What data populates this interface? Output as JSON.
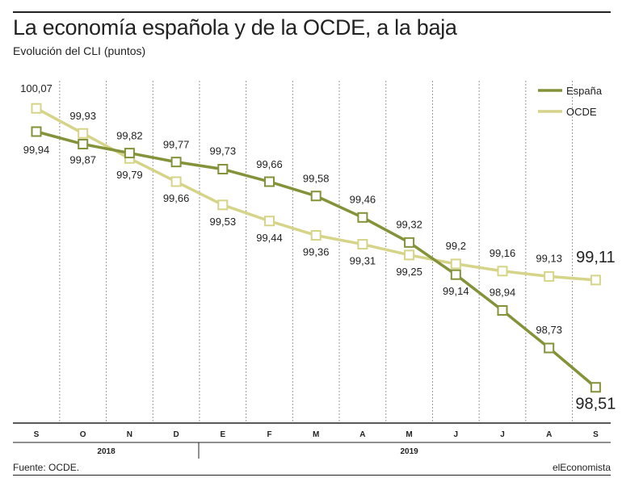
{
  "header": {
    "title": "La economía española y de la OCDE, a la baja",
    "subtitle": "Evolución del CLI (puntos)"
  },
  "footer": {
    "source": "Fuente: OCDE.",
    "brand": "elEconomista"
  },
  "colors": {
    "espana": "#84923a",
    "ocde": "#d6d488",
    "grid": "#999999",
    "text": "#222222"
  },
  "chart_data": {
    "type": "line",
    "title": "La economía española y de la OCDE, a la baja",
    "subtitle": "Evolución del CLI (puntos)",
    "categories": [
      "S",
      "O",
      "N",
      "D",
      "E",
      "F",
      "M",
      "A",
      "M",
      "J",
      "J",
      "A",
      "S"
    ],
    "year_groups": [
      {
        "label": "2018",
        "start": 0,
        "end": 3
      },
      {
        "label": "2019",
        "start": 4,
        "end": 12
      }
    ],
    "series": [
      {
        "name": "España",
        "color": "#84923a",
        "values": [
          99.94,
          99.87,
          99.82,
          99.77,
          99.73,
          99.66,
          99.58,
          99.46,
          99.32,
          99.14,
          98.94,
          98.73,
          98.51
        ],
        "labels": [
          "99,94",
          "99,87",
          "99,82",
          "99,77",
          "99,73",
          "99,66",
          "99,58",
          "99,46",
          "99,32",
          "99,14",
          "98,94",
          "98,73",
          "98,51"
        ]
      },
      {
        "name": "OCDE",
        "color": "#d6d488",
        "values": [
          100.07,
          99.93,
          99.79,
          99.66,
          99.53,
          99.44,
          99.36,
          99.31,
          99.25,
          99.2,
          99.16,
          99.13,
          99.11
        ],
        "labels": [
          "100,07",
          "99,93",
          "99,79",
          "99,66",
          "99,53",
          "99,44",
          "99,36",
          "99,31",
          "99,25",
          "99,2",
          "99,16",
          "99,13",
          "99,11"
        ]
      }
    ],
    "legend_position": "top-right",
    "grid": "vertical dashed"
  }
}
